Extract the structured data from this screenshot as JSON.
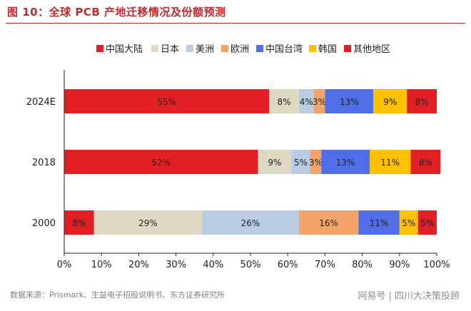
{
  "header": {
    "title": "图 10：全球 PCB 产地迁移情况及份额预测"
  },
  "footer": {
    "source": "数据来源：Prismark、生益电子招股说明书、东方证券研究所",
    "watermark": "网易号 | 四川大决策投顾"
  },
  "chart_data": {
    "type": "bar",
    "orientation": "horizontal",
    "stacked": true,
    "categories": [
      "2024E",
      "2018",
      "2000"
    ],
    "series": [
      {
        "name": "中国大陆",
        "color": "#e31f26",
        "values": [
          55,
          52,
          8
        ],
        "labels": [
          "55%",
          "52%",
          "8%"
        ]
      },
      {
        "name": "日本",
        "color": "#ddd9c3",
        "values": [
          8,
          9,
          29
        ],
        "labels": [
          "8%",
          "9%",
          "29%"
        ]
      },
      {
        "name": "美洲",
        "color": "#b8cce4",
        "values": [
          4,
          5,
          26
        ],
        "labels": [
          "4%",
          "5%",
          "26%"
        ]
      },
      {
        "name": "欧洲",
        "color": "#f4a46a",
        "values": [
          3,
          3,
          16
        ],
        "labels": [
          "3%",
          "3%",
          "16%"
        ]
      },
      {
        "name": "中国台湾",
        "color": "#4f6ee8",
        "values": [
          13,
          13,
          11
        ],
        "labels": [
          "13%",
          "13%",
          "11%"
        ]
      },
      {
        "name": "韩国",
        "color": "#ffc000",
        "values": [
          9,
          11,
          5
        ],
        "labels": [
          "9%",
          "11%",
          "5%"
        ]
      },
      {
        "name": "其他地区",
        "color": "#e31f26",
        "values": [
          8,
          8,
          5
        ],
        "labels": [
          "8%",
          "8%",
          "5%"
        ]
      }
    ],
    "xlim": [
      0,
      100
    ],
    "xticks": [
      "0%",
      "10%",
      "20%",
      "30%",
      "40%",
      "50%",
      "60%",
      "70%",
      "80%",
      "90%",
      "100%"
    ],
    "legend_position": "top",
    "grid": false
  }
}
